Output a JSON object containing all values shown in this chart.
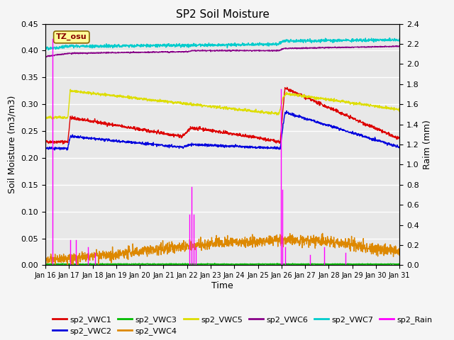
{
  "title": "SP2 Soil Moisture",
  "xlabel": "Time",
  "ylabel_left": "Soil Moisture (m3/m3)",
  "ylabel_right": "Raim (mm)",
  "ylim_left": [
    0.0,
    0.45
  ],
  "ylim_right": [
    0.0,
    2.4
  ],
  "yticks_left": [
    0.0,
    0.05,
    0.1,
    0.15,
    0.2,
    0.25,
    0.3,
    0.35,
    0.4,
    0.45
  ],
  "yticks_right": [
    0.0,
    0.2,
    0.4,
    0.6,
    0.8,
    1.0,
    1.2,
    1.4,
    1.6,
    1.8,
    2.0,
    2.2,
    2.4
  ],
  "xlim": [
    0,
    15
  ],
  "xtick_labels": [
    "Jan 16",
    "Jan 17",
    "Jan 18",
    "Jan 19",
    "Jan 20",
    "Jan 21",
    "Jan 22",
    "Jan 23",
    "Jan 24",
    "Jan 25",
    "Jan 26",
    "Jan 27",
    "Jan 28",
    "Jan 29",
    "Jan 30",
    "Jan 31"
  ],
  "colors": {
    "VWC1": "#dd0000",
    "VWC2": "#0000dd",
    "VWC3": "#00bb00",
    "VWC4": "#dd8800",
    "VWC5": "#dddd00",
    "VWC6": "#880088",
    "VWC7": "#00cccc",
    "Rain": "#ff00ff"
  },
  "watermark": "TZ_osu",
  "plot_bg_color": "#e8e8e8",
  "grid_color": "#ffffff",
  "fig_bg_color": "#f5f5f5"
}
